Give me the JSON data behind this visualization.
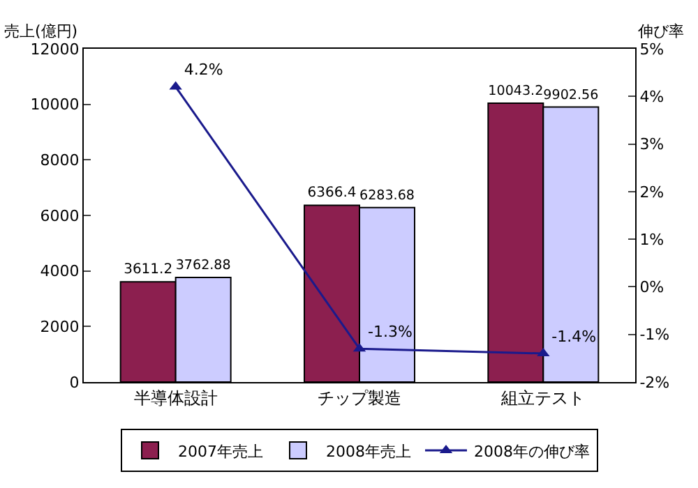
{
  "chart_data": {
    "type": "bar",
    "ylabel": "売上(億円)",
    "y2label": "伸び率",
    "categories": [
      "半導体設計",
      "チップ製造",
      "組立テスト"
    ],
    "series": [
      {
        "name": "2007年売上",
        "color": "#8c1f4f",
        "values": [
          3611.2,
          6366.4,
          10043.2
        ],
        "value_labels": [
          "3611.2",
          "6366.4",
          "10043.2"
        ]
      },
      {
        "name": "2008年売上",
        "color": "#ccccff",
        "values": [
          3762.88,
          6283.68,
          9902.56
        ],
        "value_labels": [
          "3762.88",
          "6283.68",
          "9902.56"
        ]
      },
      {
        "name": "2008年の伸び率",
        "type": "line",
        "axis": "y2",
        "color": "#1a1a8c",
        "marker": "triangle",
        "values": [
          4.2,
          -1.3,
          -1.4
        ],
        "value_labels": [
          "4.2%",
          "-1.3%",
          "-1.4%"
        ]
      }
    ],
    "ylim": [
      0,
      12000
    ],
    "yticks": [
      0,
      2000,
      4000,
      6000,
      8000,
      10000,
      12000
    ],
    "y2lim": [
      -2,
      5
    ],
    "y2ticks": [
      {
        "value": -2,
        "label": "-2%"
      },
      {
        "value": -1,
        "label": "-1%"
      },
      {
        "value": 0,
        "label": "0%"
      },
      {
        "value": 1,
        "label": "1%"
      },
      {
        "value": 2,
        "label": "2%"
      },
      {
        "value": 3,
        "label": "3%"
      },
      {
        "value": 4,
        "label": "4%"
      },
      {
        "value": 5,
        "label": "5%"
      }
    ],
    "legend": "bottom"
  }
}
